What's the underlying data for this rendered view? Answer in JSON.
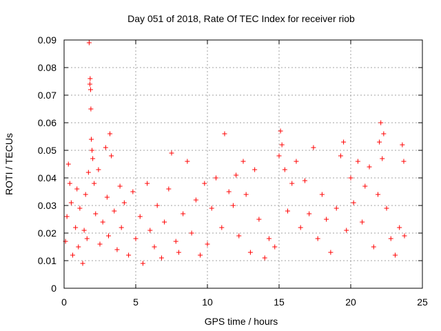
{
  "chart_data": {
    "type": "scatter",
    "title": "Day 051 of 2018, Rate Of TEC Index for receiver riob",
    "xlabel": "GPS time / hours",
    "ylabel": "ROTI / TECUs",
    "xlim": [
      0,
      25
    ],
    "ylim": [
      0,
      0.09
    ],
    "xticks": [
      0,
      5,
      10,
      15,
      20,
      25
    ],
    "xtick_labels": [
      "0",
      "5",
      "10",
      "15",
      "20",
      "25"
    ],
    "yticks": [
      0,
      0.01,
      0.02,
      0.03,
      0.04,
      0.05,
      0.06,
      0.07,
      0.08,
      0.09
    ],
    "ytick_labels": [
      "0",
      "0.01",
      "0.02",
      "0.03",
      "0.04",
      "0.05",
      "0.06",
      "0.07",
      "0.08",
      "0.09"
    ],
    "grid": true,
    "marker": "+",
    "color": "#ff0000",
    "series": [
      {
        "name": "ROTI",
        "points": [
          [
            0.1,
            0.017
          ],
          [
            0.2,
            0.026
          ],
          [
            0.3,
            0.045
          ],
          [
            0.4,
            0.038
          ],
          [
            0.5,
            0.031
          ],
          [
            0.6,
            0.012
          ],
          [
            0.8,
            0.022
          ],
          [
            0.9,
            0.036
          ],
          [
            1.0,
            0.015
          ],
          [
            1.1,
            0.029
          ],
          [
            1.3,
            0.009
          ],
          [
            1.4,
            0.021
          ],
          [
            1.5,
            0.034
          ],
          [
            1.6,
            0.018
          ],
          [
            1.7,
            0.042
          ],
          [
            1.75,
            0.089
          ],
          [
            1.8,
            0.074
          ],
          [
            1.82,
            0.076
          ],
          [
            1.85,
            0.072
          ],
          [
            1.87,
            0.065
          ],
          [
            1.9,
            0.054
          ],
          [
            1.95,
            0.05
          ],
          [
            2.0,
            0.047
          ],
          [
            2.1,
            0.038
          ],
          [
            2.2,
            0.027
          ],
          [
            2.4,
            0.043
          ],
          [
            2.5,
            0.016
          ],
          [
            2.7,
            0.024
          ],
          [
            2.9,
            0.051
          ],
          [
            3.0,
            0.033
          ],
          [
            3.1,
            0.019
          ],
          [
            3.2,
            0.056
          ],
          [
            3.3,
            0.048
          ],
          [
            3.5,
            0.028
          ],
          [
            3.7,
            0.014
          ],
          [
            3.9,
            0.037
          ],
          [
            4.0,
            0.022
          ],
          [
            4.2,
            0.031
          ],
          [
            4.5,
            0.012
          ],
          [
            4.8,
            0.035
          ],
          [
            5.0,
            0.018
          ],
          [
            5.3,
            0.026
          ],
          [
            5.5,
            0.009
          ],
          [
            5.8,
            0.038
          ],
          [
            6.0,
            0.021
          ],
          [
            6.3,
            0.015
          ],
          [
            6.5,
            0.03
          ],
          [
            6.8,
            0.011
          ],
          [
            7.0,
            0.024
          ],
          [
            7.3,
            0.036
          ],
          [
            7.5,
            0.049
          ],
          [
            7.8,
            0.017
          ],
          [
            8.0,
            0.013
          ],
          [
            8.3,
            0.027
          ],
          [
            8.6,
            0.046
          ],
          [
            8.9,
            0.02
          ],
          [
            9.2,
            0.032
          ],
          [
            9.5,
            0.012
          ],
          [
            9.8,
            0.038
          ],
          [
            10.0,
            0.016
          ],
          [
            10.3,
            0.029
          ],
          [
            10.6,
            0.04
          ],
          [
            11.0,
            0.022
          ],
          [
            11.2,
            0.056
          ],
          [
            11.5,
            0.035
          ],
          [
            11.8,
            0.03
          ],
          [
            12.0,
            0.041
          ],
          [
            12.2,
            0.019
          ],
          [
            12.5,
            0.046
          ],
          [
            12.7,
            0.034
          ],
          [
            13.0,
            0.013
          ],
          [
            13.3,
            0.043
          ],
          [
            13.6,
            0.025
          ],
          [
            14.0,
            0.011
          ],
          [
            14.3,
            0.018
          ],
          [
            14.7,
            0.015
          ],
          [
            15.0,
            0.048
          ],
          [
            15.1,
            0.057
          ],
          [
            15.2,
            0.052
          ],
          [
            15.4,
            0.043
          ],
          [
            15.6,
            0.028
          ],
          [
            15.9,
            0.038
          ],
          [
            16.2,
            0.046
          ],
          [
            16.5,
            0.022
          ],
          [
            16.8,
            0.039
          ],
          [
            17.1,
            0.027
          ],
          [
            17.4,
            0.051
          ],
          [
            17.7,
            0.018
          ],
          [
            18.0,
            0.034
          ],
          [
            18.3,
            0.025
          ],
          [
            18.6,
            0.013
          ],
          [
            19.0,
            0.029
          ],
          [
            19.3,
            0.048
          ],
          [
            19.5,
            0.053
          ],
          [
            19.7,
            0.021
          ],
          [
            20.0,
            0.04
          ],
          [
            20.2,
            0.031
          ],
          [
            20.5,
            0.046
          ],
          [
            20.8,
            0.024
          ],
          [
            21.0,
            0.037
          ],
          [
            21.3,
            0.044
          ],
          [
            21.6,
            0.015
          ],
          [
            21.9,
            0.034
          ],
          [
            22.0,
            0.053
          ],
          [
            22.1,
            0.06
          ],
          [
            22.2,
            0.047
          ],
          [
            22.3,
            0.056
          ],
          [
            22.5,
            0.029
          ],
          [
            22.8,
            0.018
          ],
          [
            23.1,
            0.012
          ],
          [
            23.4,
            0.022
          ],
          [
            23.6,
            0.052
          ],
          [
            23.7,
            0.046
          ],
          [
            23.75,
            0.019
          ]
        ]
      }
    ]
  }
}
